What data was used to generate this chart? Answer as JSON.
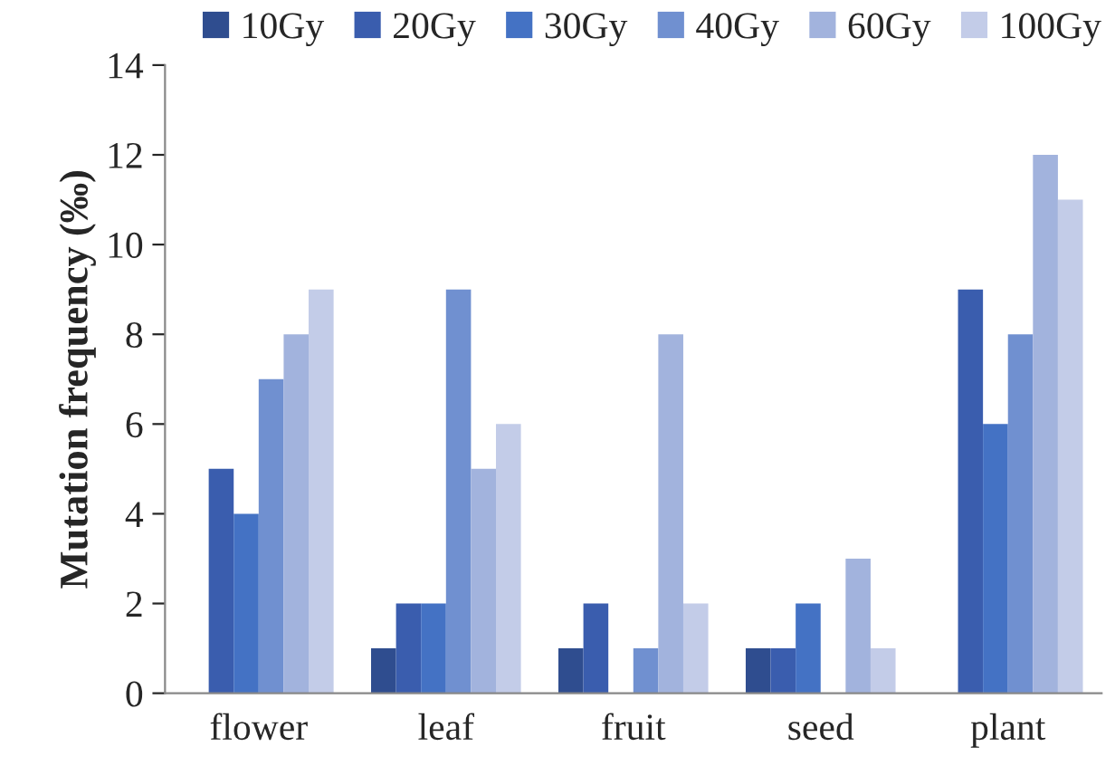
{
  "chart_data": {
    "type": "bar",
    "ylabel": "Mutation frequency (‰)",
    "categories": [
      "flower",
      "leaf",
      "fruit",
      "seed",
      "plant"
    ],
    "series": [
      {
        "name": "10Gy",
        "color": "#2f4d8f",
        "values": [
          null,
          1,
          1,
          1,
          null
        ]
      },
      {
        "name": "20Gy",
        "color": "#3a5dae",
        "values": [
          5,
          2,
          2,
          1,
          9
        ]
      },
      {
        "name": "30Gy",
        "color": "#4472c4",
        "values": [
          4,
          2,
          null,
          2,
          6
        ]
      },
      {
        "name": "40Gy",
        "color": "#7090d0",
        "values": [
          7,
          9,
          1,
          null,
          8
        ]
      },
      {
        "name": "60Gy",
        "color": "#a2b3dd",
        "values": [
          8,
          5,
          8,
          3,
          12
        ]
      },
      {
        "name": "100Gy",
        "color": "#c3cce8",
        "values": [
          9,
          6,
          2,
          1,
          11
        ]
      }
    ],
    "ylim": [
      0,
      14
    ],
    "yticks": [
      0,
      2,
      4,
      6,
      8,
      10,
      12,
      14
    ],
    "legend": "top",
    "grid": false
  }
}
